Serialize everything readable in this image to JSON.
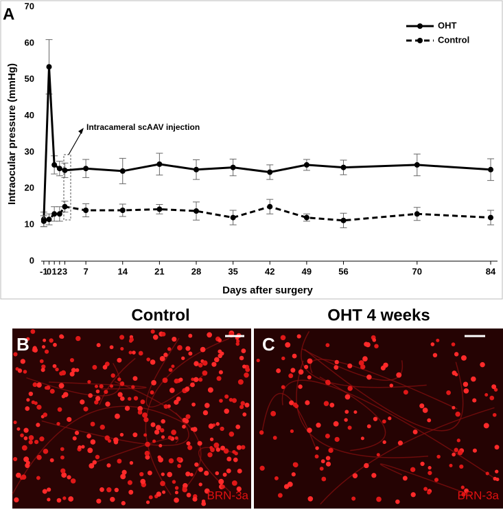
{
  "chart_data": {
    "type": "line",
    "panel_label": "A",
    "x_label": "Days after surgery",
    "y_label": "Intraocular pressure (mmHg)",
    "annotation": "Intracameral scAAV injection",
    "x": [
      -1,
      0,
      1,
      2,
      3,
      7,
      14,
      21,
      28,
      35,
      42,
      49,
      56,
      70,
      84
    ],
    "xlim": [
      -1.5,
      85.3
    ],
    "xticks": [
      -1,
      0,
      1,
      2,
      3,
      7,
      14,
      21,
      28,
      35,
      42,
      49,
      56,
      70,
      84
    ],
    "ylim": [
      0,
      70
    ],
    "yticks": [
      0,
      10,
      20,
      30,
      40,
      50,
      60,
      70
    ],
    "legend": "upper right",
    "series": [
      {
        "name": "OHT",
        "color": "#000000",
        "dash": false,
        "values": [
          11.5,
          53.5,
          26.5,
          25.5,
          25,
          25.5,
          24.8,
          26.7,
          25.2,
          25.8,
          24.5,
          26.5,
          25.8,
          26.5,
          25.2
        ],
        "errors": [
          2,
          7.5,
          2.5,
          2,
          2,
          2.5,
          3.5,
          3,
          2.7,
          2.3,
          2,
          1.5,
          2,
          3,
          3
        ]
      },
      {
        "name": "Control",
        "color": "#000000",
        "dash": true,
        "values": [
          11,
          11.5,
          13,
          13,
          15,
          14,
          14,
          14.3,
          13.8,
          12,
          15,
          12,
          11.2,
          13,
          12
        ],
        "errors": [
          1.5,
          1.5,
          2,
          2,
          1.5,
          1.8,
          1.7,
          1.3,
          2.5,
          2,
          2,
          1,
          2,
          1.8,
          2
        ]
      }
    ]
  },
  "panels": [
    {
      "label": "B",
      "title": "Control",
      "stain": "BRN-3a"
    },
    {
      "label": "C",
      "title": "OHT 4 weeks",
      "stain": "BRN-3a"
    }
  ]
}
